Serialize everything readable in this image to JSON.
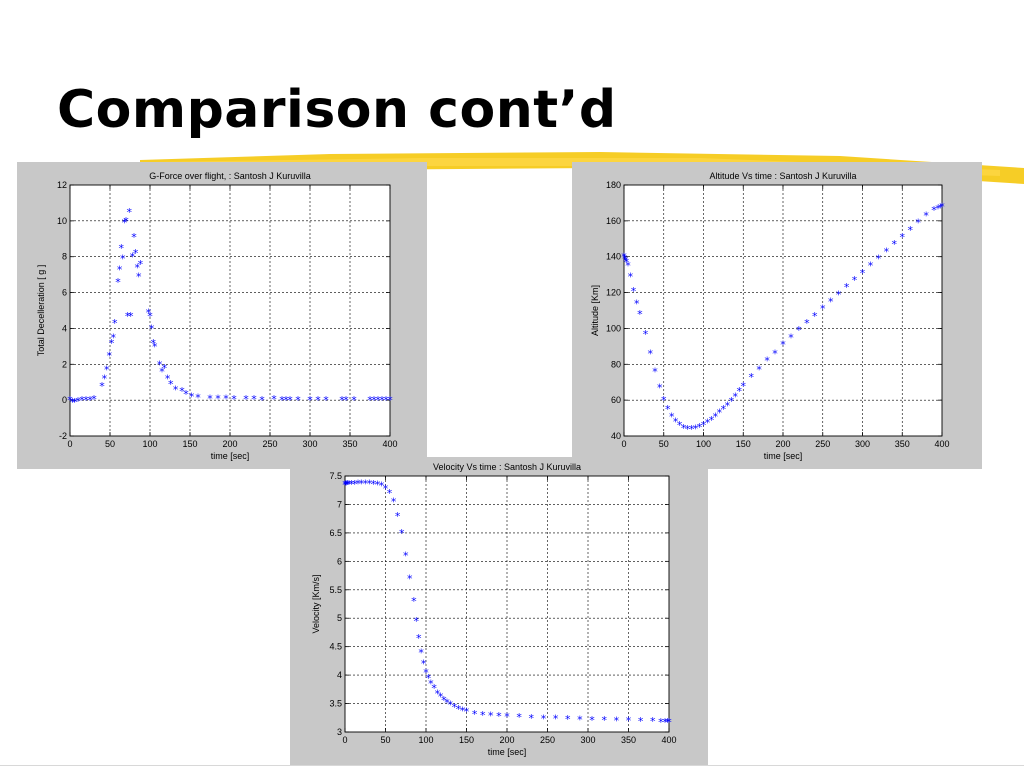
{
  "slide": {
    "title": "Comparison cont’d",
    "highlight_color": "#f5c400"
  },
  "chart_data": [
    {
      "id": "gforce",
      "type": "scatter",
      "title": "G-Force over flight, : Santosh J Kuruvilla",
      "xlabel": "time [sec]",
      "ylabel": "Total Decelleration [ g ]",
      "xlim": [
        0,
        400
      ],
      "ylim": [
        -2,
        12
      ],
      "xticks": [
        0,
        50,
        100,
        150,
        200,
        250,
        300,
        350,
        400
      ],
      "yticks": [
        -2,
        0,
        2,
        4,
        6,
        8,
        10,
        12
      ],
      "grid": true,
      "marker": "*",
      "color": "#0000ff",
      "x": [
        0,
        3,
        6,
        10,
        15,
        20,
        25,
        30,
        40,
        43,
        46,
        49,
        52,
        54,
        56,
        60,
        62,
        64,
        66,
        68,
        70,
        72,
        74,
        76,
        78,
        80,
        82,
        84,
        86,
        88,
        98,
        100,
        102,
        104,
        106,
        112,
        115,
        118,
        122,
        126,
        132,
        140,
        145,
        152,
        160,
        175,
        185,
        195,
        205,
        220,
        230,
        240,
        255,
        265,
        270,
        275,
        285,
        300,
        310,
        320,
        340,
        345,
        355,
        375,
        380,
        385,
        390,
        395,
        400
      ],
      "y": [
        0.0,
        -0.1,
        -0.1,
        -0.05,
        0.0,
        0.0,
        0.02,
        0.05,
        0.8,
        1.2,
        1.7,
        2.5,
        3.2,
        3.5,
        4.3,
        6.6,
        7.3,
        8.5,
        7.9,
        9.9,
        10.0,
        4.7,
        10.5,
        4.7,
        8.0,
        9.1,
        8.2,
        7.4,
        6.9,
        7.6,
        4.9,
        4.7,
        4.0,
        3.2,
        3.0,
        2.0,
        1.6,
        1.8,
        1.2,
        0.9,
        0.6,
        0.5,
        0.35,
        0.2,
        0.15,
        0.1,
        0.1,
        0.1,
        0.05,
        0.05,
        0.05,
        0.0,
        0.05,
        0.0,
        0.0,
        0.0,
        0.0,
        0.0,
        0.0,
        0.0,
        0.0,
        0.0,
        0.0,
        0.0,
        0.0,
        0.0,
        0.0,
        0.0,
        0.0
      ]
    },
    {
      "id": "altitude",
      "type": "scatter",
      "title": "Altitude Vs time : Santosh J Kuruvilla",
      "xlabel": "time [sec]",
      "ylabel": "Altitude [Km]",
      "xlim": [
        0,
        400
      ],
      "ylim": [
        40,
        180
      ],
      "xticks": [
        0,
        50,
        100,
        150,
        200,
        250,
        300,
        350,
        400
      ],
      "yticks": [
        40,
        60,
        80,
        100,
        120,
        140,
        160,
        180
      ],
      "grid": true,
      "marker": "*",
      "color": "#0000ff",
      "x": [
        0,
        1,
        2,
        3,
        5,
        8,
        12,
        16,
        20,
        27,
        33,
        39,
        45,
        50,
        55,
        60,
        65,
        70,
        75,
        80,
        85,
        90,
        95,
        100,
        105,
        110,
        115,
        120,
        125,
        130,
        135,
        140,
        145,
        150,
        160,
        170,
        180,
        190,
        200,
        210,
        220,
        230,
        240,
        250,
        260,
        270,
        280,
        290,
        300,
        310,
        320,
        330,
        340,
        350,
        360,
        370,
        380,
        390,
        395,
        398,
        400
      ],
      "y": [
        140,
        139,
        138,
        137,
        135,
        129,
        121,
        114,
        108,
        97,
        86,
        76,
        67,
        60,
        55,
        51,
        48,
        46,
        44.5,
        44,
        44,
        44.3,
        45,
        46,
        47.5,
        49,
        51,
        53,
        55,
        57,
        59.5,
        62,
        65,
        68,
        73,
        77,
        82,
        86,
        91,
        95,
        99,
        103,
        107,
        111,
        115,
        119,
        123,
        127,
        131,
        135,
        139,
        143,
        147,
        151,
        155,
        159,
        163,
        166,
        167,
        167.5,
        168
      ]
    },
    {
      "id": "velocity",
      "type": "scatter",
      "title": "Velocity Vs time : Santosh J Kuruvilla",
      "xlabel": "time [sec]",
      "ylabel": "Velocity [Km/s]",
      "xlim": [
        0,
        400
      ],
      "ylim": [
        3,
        7.5
      ],
      "xticks": [
        0,
        50,
        100,
        150,
        200,
        250,
        300,
        350,
        400
      ],
      "yticks": [
        3,
        3.5,
        4,
        4.5,
        5,
        5.5,
        6,
        6.5,
        7,
        7.5
      ],
      "grid": true,
      "marker": "*",
      "color": "#0000ff",
      "x": [
        0,
        1,
        2,
        3,
        5,
        8,
        12,
        16,
        20,
        25,
        30,
        35,
        40,
        45,
        50,
        55,
        60,
        65,
        70,
        75,
        80,
        85,
        88,
        91,
        94,
        97,
        100,
        103,
        106,
        110,
        114,
        118,
        122,
        126,
        130,
        135,
        140,
        145,
        150,
        160,
        170,
        180,
        190,
        200,
        215,
        230,
        245,
        260,
        275,
        290,
        305,
        320,
        335,
        350,
        365,
        380,
        390,
        395,
        398,
        400
      ],
      "y": [
        7.35,
        7.35,
        7.35,
        7.36,
        7.36,
        7.36,
        7.36,
        7.37,
        7.37,
        7.37,
        7.37,
        7.36,
        7.35,
        7.33,
        7.28,
        7.2,
        7.05,
        6.8,
        6.5,
        6.1,
        5.7,
        5.3,
        4.95,
        4.65,
        4.4,
        4.2,
        4.05,
        3.95,
        3.85,
        3.77,
        3.68,
        3.62,
        3.56,
        3.52,
        3.48,
        3.44,
        3.4,
        3.38,
        3.36,
        3.32,
        3.3,
        3.29,
        3.28,
        3.27,
        3.26,
        3.25,
        3.24,
        3.24,
        3.23,
        3.22,
        3.21,
        3.21,
        3.2,
        3.2,
        3.19,
        3.19,
        3.18,
        3.18,
        3.18,
        3.18
      ]
    }
  ]
}
